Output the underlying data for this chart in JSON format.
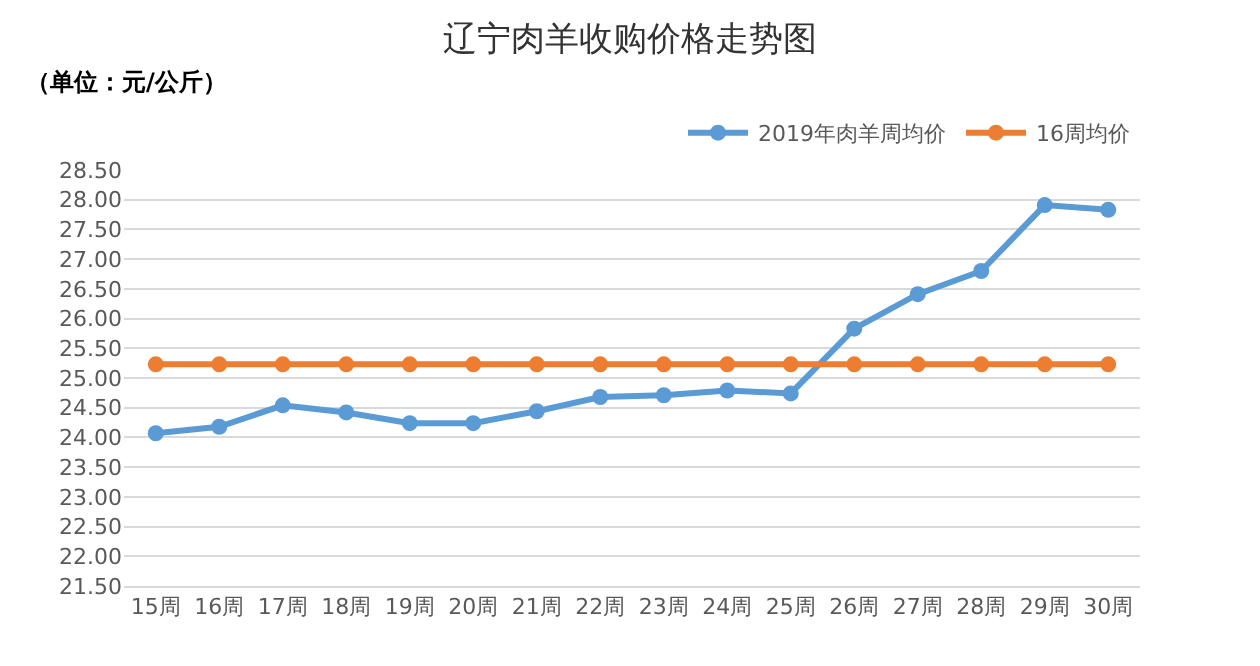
{
  "chart_data": {
    "type": "line",
    "title": "辽宁肉羊收购价格走势图",
    "ylabel": "（单位：元/公斤）",
    "categories": [
      "15周",
      "16周",
      "17周",
      "18周",
      "19周",
      "20周",
      "21周",
      "22周",
      "23周",
      "24周",
      "25周",
      "26周",
      "27周",
      "28周",
      "29周",
      "30周"
    ],
    "series": [
      {
        "name": "2019年肉羊周均价",
        "color": "#5b9bd5",
        "values": [
          24.07,
          24.18,
          24.54,
          24.42,
          24.24,
          24.24,
          24.44,
          24.68,
          24.71,
          24.79,
          24.74,
          25.83,
          26.41,
          26.8,
          27.91,
          27.83
        ]
      },
      {
        "name": "16周均价",
        "color": "#ed7d31",
        "values": [
          25.23,
          25.23,
          25.23,
          25.23,
          25.23,
          25.23,
          25.23,
          25.23,
          25.23,
          25.23,
          25.23,
          25.23,
          25.23,
          25.23,
          25.23,
          25.23
        ]
      }
    ],
    "ylim": [
      21.5,
      28.5
    ],
    "yticks": [
      {
        "value": 21.5,
        "label": "21.50"
      },
      {
        "value": 22,
        "label": "22.00"
      },
      {
        "value": 22.5,
        "label": "22.50"
      },
      {
        "value": 23,
        "label": "23.00"
      },
      {
        "value": 23.5,
        "label": "23.50"
      },
      {
        "value": 24,
        "label": "24.00"
      },
      {
        "value": 24.5,
        "label": "24.50"
      },
      {
        "value": 25,
        "label": "25.00"
      },
      {
        "value": 25.5,
        "label": "25.50"
      },
      {
        "value": 26,
        "label": "26.00"
      },
      {
        "value": 26.5,
        "label": "26.50"
      },
      {
        "value": 27,
        "label": "27.00"
      },
      {
        "value": 27.5,
        "label": "27.50"
      },
      {
        "value": 28,
        "label": "28.00"
      },
      {
        "value": 28.5,
        "label": "28.50"
      }
    ],
    "grid": "y",
    "legend": "top right",
    "marker": "circle",
    "line_style": "solid"
  }
}
